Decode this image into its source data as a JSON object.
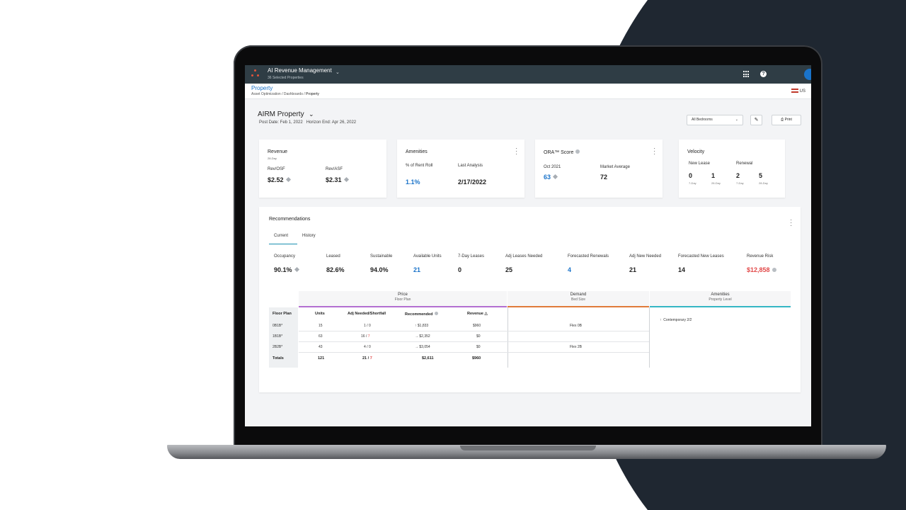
{
  "app": {
    "title": "AI Revenue Management",
    "subtitle": "36 Selected Properties",
    "region": "US"
  },
  "breadcrumb": {
    "title": "Property",
    "path": [
      "Asset Optimization",
      "Dashboards",
      "Property"
    ]
  },
  "page": {
    "property_name": "AIRM Property",
    "post_date": "Post Date: Feb 1, 2022",
    "horizon_end": "Horizon End: Apr 26, 2022",
    "bedrooms_select": "All Bedrooms",
    "print_label": "Print"
  },
  "cards": {
    "revenue": {
      "title": "Revenue",
      "subtitle": "28-Day",
      "metrics": [
        {
          "label": "Rev/OSF",
          "value": "$2.52"
        },
        {
          "label": "Rev/ASF",
          "value": "$2.31"
        }
      ]
    },
    "amenities": {
      "title": "Amenities",
      "metrics": [
        {
          "label": "% of Rent Roll",
          "value": "1.1%"
        },
        {
          "label": "Last Analysis",
          "value": "2/17/2022"
        }
      ]
    },
    "ora": {
      "title": "ORA™ Score",
      "metrics": [
        {
          "label": "Oct 2021",
          "value": "63"
        },
        {
          "label": "Market Average",
          "value": "72"
        }
      ]
    },
    "velocity": {
      "title": "Velocity",
      "groups": [
        "New Lease",
        "Renewal"
      ],
      "values": [
        {
          "value": "0",
          "period": "7-Day"
        },
        {
          "value": "1",
          "period": "28-Day"
        },
        {
          "value": "2",
          "period": "7-Day"
        },
        {
          "value": "5",
          "period": "28-Day"
        }
      ]
    }
  },
  "recommendations": {
    "title": "Recommendations",
    "tabs": [
      "Current",
      "History"
    ],
    "metrics": [
      {
        "label": "Occupancy",
        "value": "90.1%"
      },
      {
        "label": "Leased",
        "value": "82.6%"
      },
      {
        "label": "Sustainable",
        "value": "94.0%"
      },
      {
        "label": "Available Units",
        "value": "21"
      },
      {
        "label": "7-Day Leases",
        "value": "0"
      },
      {
        "label": "Adj Leases Needed",
        "value": "25"
      },
      {
        "label": "Forecasted Renewals",
        "value": "4"
      },
      {
        "label": "Adj New Needed",
        "value": "21"
      },
      {
        "label": "Forecasted New Leases",
        "value": "14"
      },
      {
        "label": "Revenue Risk",
        "value": "$12,858"
      }
    ],
    "table": {
      "bands": [
        {
          "title": "Price",
          "subtitle": "Floor Plan",
          "color": "#b36fd1"
        },
        {
          "title": "Demand",
          "subtitle": "Bed Size",
          "color": "#e07b39"
        },
        {
          "title": "Amenities",
          "subtitle": "Property Level",
          "color": "#35b6c4"
        }
      ],
      "headers": [
        "Floor Plan",
        "Units",
        "Adj Needed/Shortfall",
        "Recommended",
        "Revenue"
      ],
      "rows": [
        {
          "plan": "0B1B*",
          "units": "15",
          "adj": "1",
          "short": "0",
          "rec": "$1,833",
          "rec_icon": "↑",
          "revenue": "$960",
          "demand": "Flex 0B"
        },
        {
          "plan": "1B1B*",
          "units": "63",
          "adj": "16",
          "short": "7",
          "rec": "$2,352",
          "rec_icon": "→",
          "revenue": "$0",
          "demand": ""
        },
        {
          "plan": "2B2B*",
          "units": "43",
          "adj": "4",
          "short": "0",
          "rec": "$3,054",
          "rec_icon": "→",
          "revenue": "$0",
          "demand": "Flex 2B"
        }
      ],
      "totals": {
        "label": "Totals",
        "units": "121",
        "adj": "21",
        "short": "7",
        "rec": "$2,611",
        "revenue": "$960"
      },
      "amenity_item": "Contemporary 2/2"
    }
  }
}
